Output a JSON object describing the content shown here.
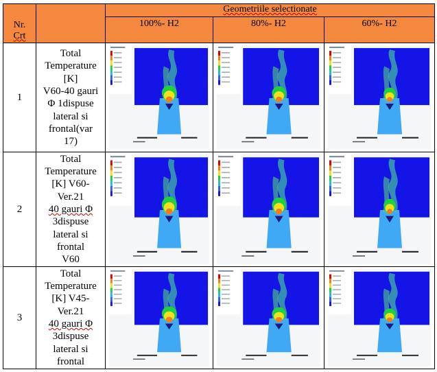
{
  "header": {
    "title": "Geometriile selectionate",
    "nr_line1": "Nr.",
    "nr_line2": "Crt",
    "columns": [
      "100%- H2",
      "80%- H2",
      "60%- H2"
    ]
  },
  "rows": [
    {
      "nr": "1",
      "desc": [
        "Total",
        "Temperature",
        "[K]",
        "V60-40 gauri",
        "Φ 1dispuse",
        "lateral si",
        "frontal(var",
        "17)"
      ]
    },
    {
      "nr": "2",
      "desc": [
        "Total",
        "Temperature",
        "[K] V60-",
        "Ver.21",
        "40 gauri Φ",
        "3dispuse",
        "lateral si",
        "frontal",
        "V60"
      ]
    },
    {
      "nr": "3",
      "desc": [
        "Total",
        "Temperature",
        "[K] V45-",
        "Ver.21",
        "40 gauri Φ",
        "3dispuse",
        "lateral si",
        "frontal"
      ]
    }
  ],
  "image_legend_title": "Total Temperature",
  "colors": {
    "header_bg": "#f4883f",
    "domain_blue": "#1414e6",
    "nozzle_blue": "#3fa9f5",
    "flame_green": "#20d040",
    "flame_yellow": "#f0e020",
    "flame_orange": "#f08018"
  }
}
